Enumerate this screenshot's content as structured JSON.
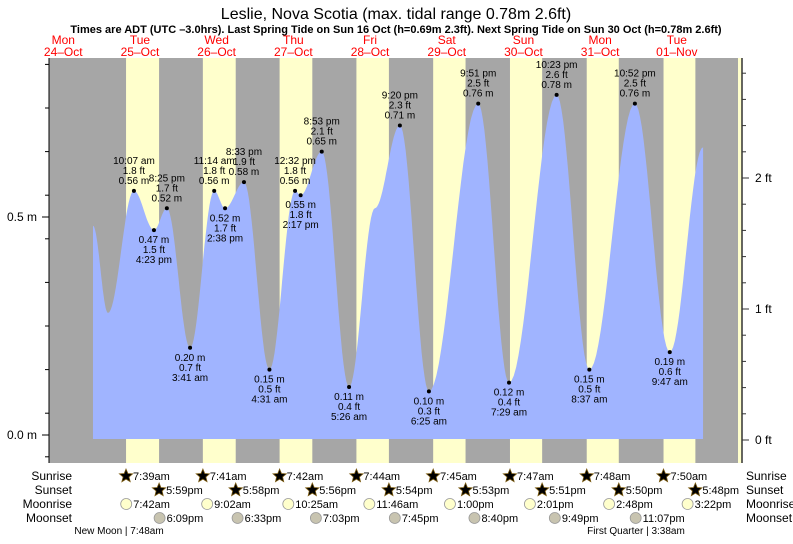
{
  "chart_data": {
    "type": "area",
    "title": "Leslie, Nova Scotia (max. tidal range 0.78m 2.6ft)",
    "subtitle": "Times are ADT (UTC –3.0hrs). Last Spring Tide on Sun 16 Oct (h=0.69m 2.3ft). Next Spring Tide on Sun 30 Oct (h=0.78m 2.6ft)",
    "ylabel_left": "m",
    "ylabel_right": "ft",
    "left_ticks": [
      {
        "value": 0.0,
        "label": "0.0 m"
      },
      {
        "value": 0.5,
        "label": "0.5 m"
      }
    ],
    "right_ticks": [
      {
        "value": 0,
        "label": "0 ft"
      },
      {
        "value": 1,
        "label": "1 ft"
      },
      {
        "value": 2,
        "label": "2 ft"
      }
    ],
    "days": [
      {
        "dow": "Mon",
        "date": "24–Oct",
        "key": -1
      },
      {
        "dow": "Tue",
        "date": "25–Oct",
        "key": 0
      },
      {
        "dow": "Wed",
        "date": "26–Oct",
        "key": 1
      },
      {
        "dow": "Thu",
        "date": "27–Oct",
        "key": 2
      },
      {
        "dow": "Fri",
        "date": "28–Oct",
        "key": 3
      },
      {
        "dow": "Sat",
        "date": "29–Oct",
        "key": 4
      },
      {
        "dow": "Sun",
        "date": "30–Oct",
        "key": 5
      },
      {
        "dow": "Mon",
        "date": "31–Oct",
        "key": 6
      },
      {
        "dow": "Tue",
        "date": "01–Nov",
        "key": 7
      }
    ],
    "unlabeled_points": [
      {
        "day": -1,
        "hour": 21.3,
        "m": 0.48
      },
      {
        "day": 0,
        "hour": 2.0,
        "m": 0.28
      },
      {
        "day": 3,
        "hour": 13.5,
        "m": 0.52
      },
      {
        "day": 7,
        "hour": 20.2,
        "m": 0.66
      }
    ],
    "tides": [
      {
        "day": 0,
        "type": "high",
        "time": "10:07 am",
        "ft": "1.8 ft",
        "m": "0.56 m"
      },
      {
        "day": 0,
        "type": "low",
        "time": "4:23 pm",
        "ft": "1.5 ft",
        "m": "0.47 m"
      },
      {
        "day": 0,
        "type": "high",
        "time": "8:25 pm",
        "ft": "1.7 ft",
        "m": "0.52 m"
      },
      {
        "day": 1,
        "type": "low",
        "time": "3:41 am",
        "ft": "0.7 ft",
        "m": "0.20 m"
      },
      {
        "day": 1,
        "type": "high",
        "time": "11:14 am",
        "ft": "1.8 ft",
        "m": "0.56 m"
      },
      {
        "day": 1,
        "type": "low",
        "time": "2:38 pm",
        "ft": "1.7 ft",
        "m": "0.52 m"
      },
      {
        "day": 1,
        "type": "high",
        "time": "8:33 pm",
        "ft": "1.9 ft",
        "m": "0.58 m"
      },
      {
        "day": 2,
        "type": "low",
        "time": "4:31 am",
        "ft": "0.5 ft",
        "m": "0.15 m"
      },
      {
        "day": 2,
        "type": "high",
        "time": "12:32 pm",
        "ft": "1.8 ft",
        "m": "0.56 m"
      },
      {
        "day": 2,
        "type": "low",
        "time": "2:17 pm",
        "ft": "1.8 ft",
        "m": "0.55 m"
      },
      {
        "day": 2,
        "type": "high",
        "time": "8:53 pm",
        "ft": "2.1 ft",
        "m": "0.65 m"
      },
      {
        "day": 3,
        "type": "low",
        "time": "5:26 am",
        "ft": "0.4 ft",
        "m": "0.11 m"
      },
      {
        "day": 3,
        "type": "high",
        "time": "9:20 pm",
        "ft": "2.3 ft",
        "m": "0.71 m"
      },
      {
        "day": 4,
        "type": "low",
        "time": "6:25 am",
        "ft": "0.3 ft",
        "m": "0.10 m"
      },
      {
        "day": 4,
        "type": "high",
        "time": "9:51 pm",
        "ft": "2.5 ft",
        "m": "0.76 m"
      },
      {
        "day": 5,
        "type": "low",
        "time": "7:29 am",
        "ft": "0.4 ft",
        "m": "0.12 m"
      },
      {
        "day": 5,
        "type": "high",
        "time": "10:23 pm",
        "ft": "2.6 ft",
        "m": "0.78 m"
      },
      {
        "day": 6,
        "type": "low",
        "time": "8:37 am",
        "ft": "0.5 ft",
        "m": "0.15 m"
      },
      {
        "day": 6,
        "type": "high",
        "time": "10:52 pm",
        "ft": "2.5 ft",
        "m": "0.76 m"
      },
      {
        "day": 7,
        "type": "low",
        "time": "9:47 am",
        "ft": "0.6 ft",
        "m": "0.19 m"
      }
    ],
    "row_labels": {
      "sunrise": "Sunrise",
      "sunset": "Sunset",
      "moonrise": "Moonrise",
      "moonset": "Moonset"
    },
    "sunrise": [
      {
        "day": 0,
        "time": "7:39am"
      },
      {
        "day": 1,
        "time": "7:41am"
      },
      {
        "day": 2,
        "time": "7:42am"
      },
      {
        "day": 3,
        "time": "7:44am"
      },
      {
        "day": 4,
        "time": "7:45am"
      },
      {
        "day": 5,
        "time": "7:47am"
      },
      {
        "day": 6,
        "time": "7:48am"
      },
      {
        "day": 7,
        "time": "7:50am"
      }
    ],
    "sunset": [
      {
        "day": 0,
        "time": "5:59pm"
      },
      {
        "day": 1,
        "time": "5:58pm"
      },
      {
        "day": 2,
        "time": "5:56pm"
      },
      {
        "day": 3,
        "time": "5:54pm"
      },
      {
        "day": 4,
        "time": "5:53pm"
      },
      {
        "day": 5,
        "time": "5:51pm"
      },
      {
        "day": 6,
        "time": "5:50pm"
      },
      {
        "day": 7,
        "time": "5:48pm"
      }
    ],
    "moonrise": [
      {
        "day": 0,
        "time": "7:42am"
      },
      {
        "day": 1,
        "time": "9:02am"
      },
      {
        "day": 2,
        "time": "10:25am"
      },
      {
        "day": 3,
        "time": "11:46am"
      },
      {
        "day": 4,
        "time": "1:00pm"
      },
      {
        "day": 5,
        "time": "2:01pm"
      },
      {
        "day": 6,
        "time": "2:48pm"
      },
      {
        "day": 7,
        "time": "3:22pm"
      }
    ],
    "moonset": [
      {
        "day": 0,
        "time": "6:09pm"
      },
      {
        "day": 1,
        "time": "6:33pm"
      },
      {
        "day": 2,
        "time": "7:03pm"
      },
      {
        "day": 3,
        "time": "7:45pm"
      },
      {
        "day": 4,
        "time": "8:40pm"
      },
      {
        "day": 5,
        "time": "9:49pm"
      },
      {
        "day": 6,
        "time": "11:07pm"
      }
    ],
    "moon_phases": [
      {
        "label": "New Moon | 7:48am",
        "day": 0,
        "time": "7:48am"
      },
      {
        "label": "First Quarter | 3:38am",
        "day": 6,
        "time": "3:38am"
      }
    ],
    "colors": {
      "night": "#a6a6a6",
      "day": "#ffffcc",
      "water": "#a0b4ff",
      "day_label": "#ff0000",
      "sunrise_star": "#c8b432",
      "sunset_star": "#e0602a",
      "moonrise": "#ffffcc",
      "moonset": "#c8c4b0"
    }
  }
}
